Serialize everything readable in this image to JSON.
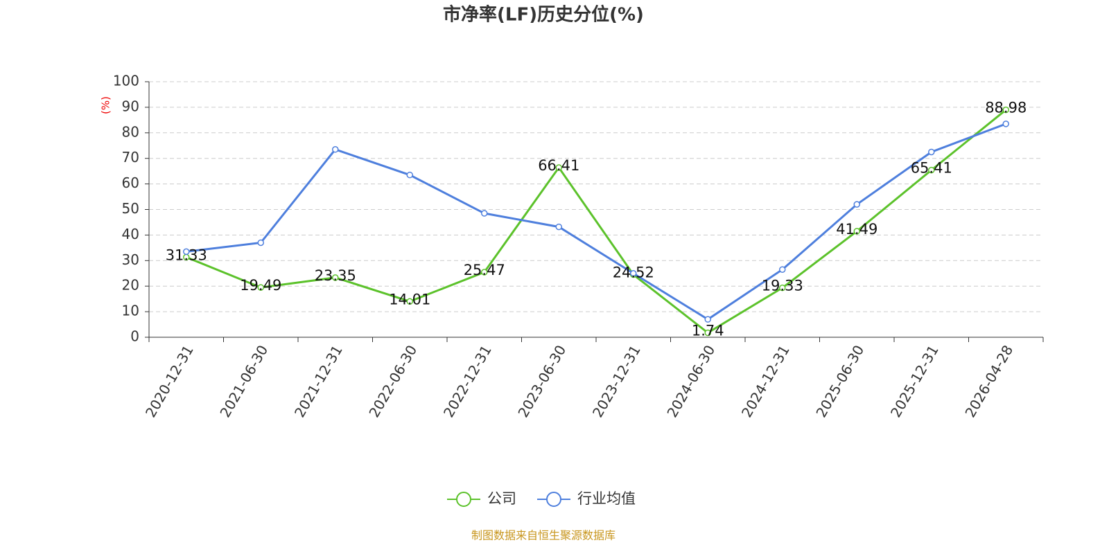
{
  "chart_data": {
    "type": "line",
    "title": "市净率(LF)历史分位(%)",
    "y_label": "(%)",
    "categories": [
      "2020-12-31",
      "2021-06-30",
      "2021-12-31",
      "2022-06-30",
      "2022-12-31",
      "2023-06-30",
      "2023-12-31",
      "2024-06-30",
      "2024-12-31",
      "2025-06-30",
      "2025-12-31",
      "2026-04-28"
    ],
    "series": [
      {
        "name": "公司",
        "color": "#5cc22b",
        "show_labels": true,
        "values": [
          31.33,
          19.49,
          23.35,
          14.01,
          25.47,
          66.41,
          24.52,
          1.74,
          19.33,
          41.49,
          65.41,
          88.98
        ]
      },
      {
        "name": "行业均值",
        "color": "#4e7fdd",
        "show_labels": false,
        "values": [
          33.5,
          37,
          73.5,
          63.5,
          48.5,
          43.2,
          25,
          7,
          26.5,
          52,
          72.5,
          83.5
        ]
      }
    ],
    "ylim": [
      0,
      100
    ],
    "yticks": [
      0,
      10,
      20,
      30,
      40,
      50,
      60,
      70,
      80,
      90,
      100
    ],
    "grid": true,
    "source": "制图数据来自恒生聚源数据库"
  }
}
